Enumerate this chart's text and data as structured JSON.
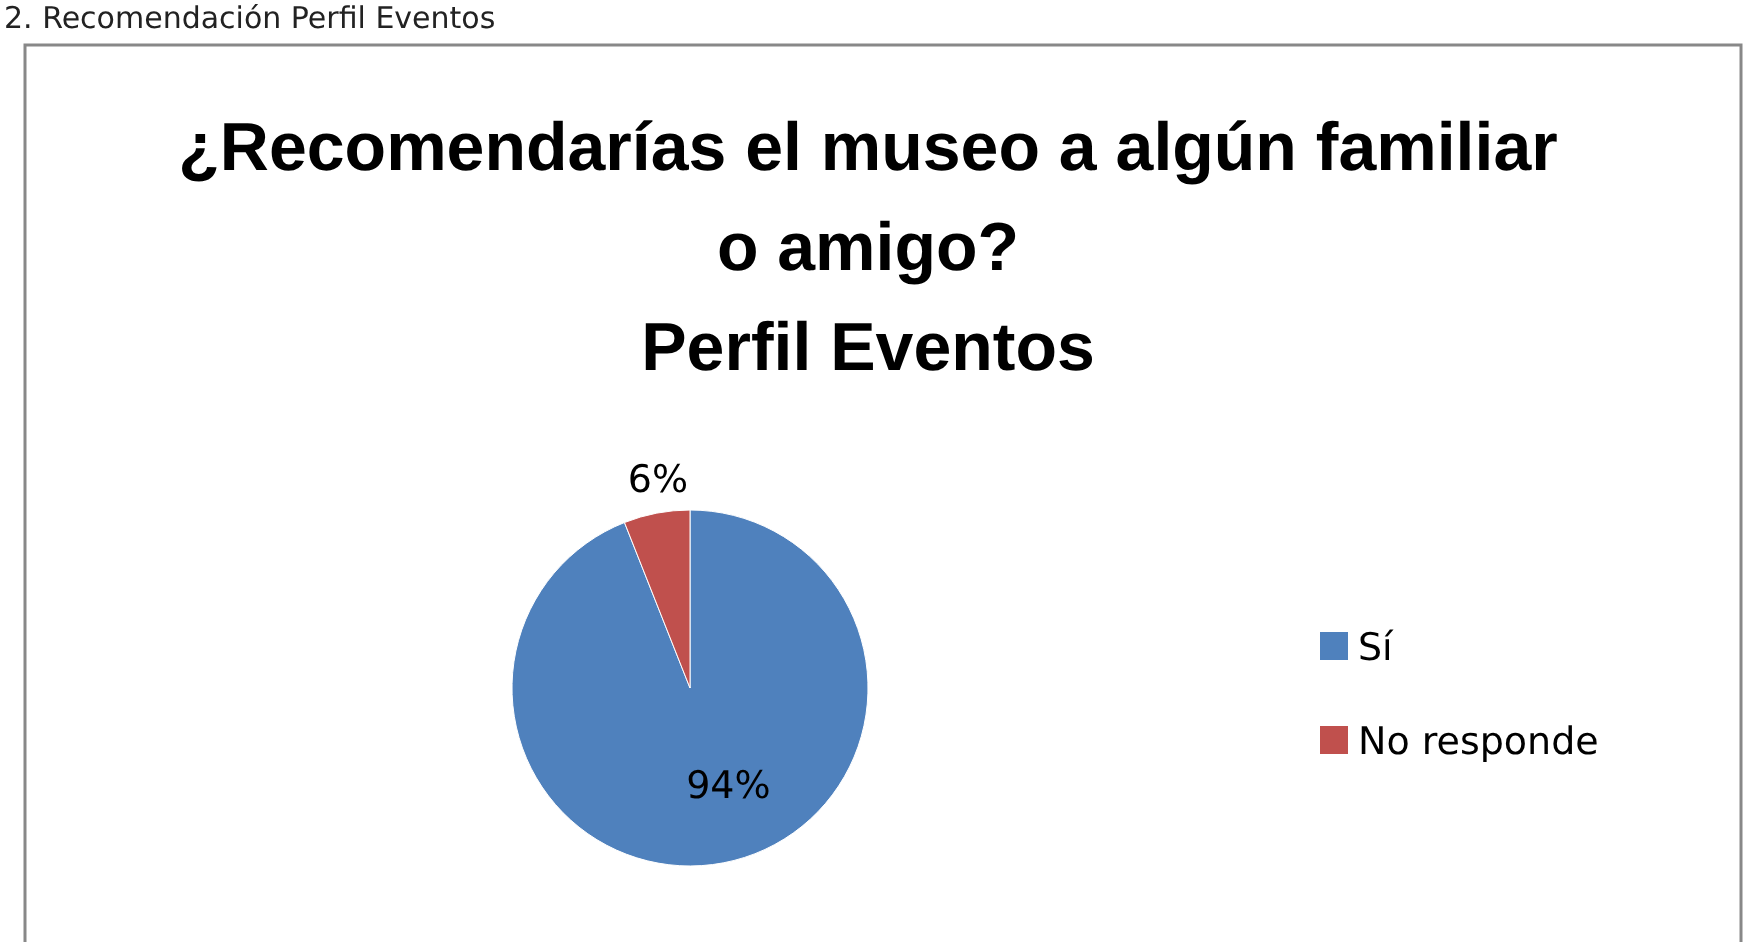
{
  "chart_data": {
    "type": "pie",
    "title": "¿Recomendarías el museo a algún familiar o amigo?\nPerfil Eventos",
    "annotations": [
      "2. Recomendación Perfil Eventos"
    ],
    "categories": [
      "Sí",
      "No responde"
    ],
    "values": [
      94,
      6
    ],
    "colors": [
      "#4f81bd",
      "#c0504d"
    ],
    "value_labels": [
      "94%",
      "6%"
    ],
    "legend": "right"
  }
}
